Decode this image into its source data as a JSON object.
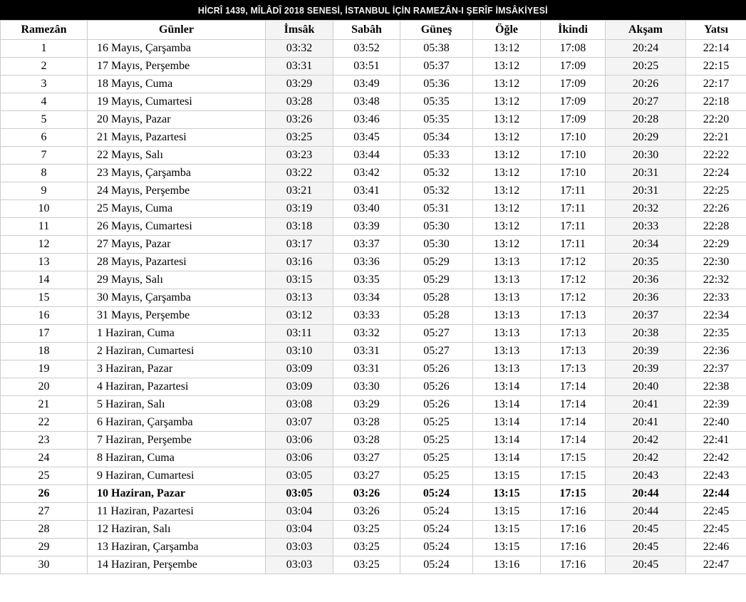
{
  "title": "HİCRÎ 1439, MÎLÂDÎ 2018 SENESİ, İSTANBUL İÇİN RAMEZÂN-I ŞERÎF İMSÂKİYESİ",
  "table": {
    "columns": [
      {
        "key": "ramezan",
        "label": "Ramezân"
      },
      {
        "key": "gunler",
        "label": "Günler"
      },
      {
        "key": "imsak",
        "label": "İmsâk"
      },
      {
        "key": "sabah",
        "label": "Sabâh"
      },
      {
        "key": "gunes",
        "label": "Güneş"
      },
      {
        "key": "ogle",
        "label": "Öğle"
      },
      {
        "key": "ikindi",
        "label": "İkindi"
      },
      {
        "key": "aksam",
        "label": "Akşam"
      },
      {
        "key": "yatsi",
        "label": "Yatsı"
      }
    ],
    "shaded_column_keys": [
      "imsak",
      "aksam"
    ],
    "highlighted_row_index": 25,
    "rows": [
      [
        "1",
        "16 Mayıs, Çarşamba",
        "03:32",
        "03:52",
        "05:38",
        "13:12",
        "17:08",
        "20:24",
        "22:14"
      ],
      [
        "2",
        "17 Mayıs, Perşembe",
        "03:31",
        "03:51",
        "05:37",
        "13:12",
        "17:09",
        "20:25",
        "22:15"
      ],
      [
        "3",
        "18 Mayıs, Cuma",
        "03:29",
        "03:49",
        "05:36",
        "13:12",
        "17:09",
        "20:26",
        "22:17"
      ],
      [
        "4",
        "19 Mayıs, Cumartesi",
        "03:28",
        "03:48",
        "05:35",
        "13:12",
        "17:09",
        "20:27",
        "22:18"
      ],
      [
        "5",
        "20 Mayıs, Pazar",
        "03:26",
        "03:46",
        "05:35",
        "13:12",
        "17:09",
        "20:28",
        "22:20"
      ],
      [
        "6",
        "21 Mayıs, Pazartesi",
        "03:25",
        "03:45",
        "05:34",
        "13:12",
        "17:10",
        "20:29",
        "22:21"
      ],
      [
        "7",
        "22 Mayıs, Salı",
        "03:23",
        "03:44",
        "05:33",
        "13:12",
        "17:10",
        "20:30",
        "22:22"
      ],
      [
        "8",
        "23 Mayıs, Çarşamba",
        "03:22",
        "03:42",
        "05:32",
        "13:12",
        "17:10",
        "20:31",
        "22:24"
      ],
      [
        "9",
        "24 Mayıs, Perşembe",
        "03:21",
        "03:41",
        "05:32",
        "13:12",
        "17:11",
        "20:31",
        "22:25"
      ],
      [
        "10",
        "25 Mayıs, Cuma",
        "03:19",
        "03:40",
        "05:31",
        "13:12",
        "17:11",
        "20:32",
        "22:26"
      ],
      [
        "11",
        "26 Mayıs, Cumartesi",
        "03:18",
        "03:39",
        "05:30",
        "13:12",
        "17:11",
        "20:33",
        "22:28"
      ],
      [
        "12",
        "27 Mayıs, Pazar",
        "03:17",
        "03:37",
        "05:30",
        "13:12",
        "17:11",
        "20:34",
        "22:29"
      ],
      [
        "13",
        "28 Mayıs, Pazartesi",
        "03:16",
        "03:36",
        "05:29",
        "13:13",
        "17:12",
        "20:35",
        "22:30"
      ],
      [
        "14",
        "29 Mayıs, Salı",
        "03:15",
        "03:35",
        "05:29",
        "13:13",
        "17:12",
        "20:36",
        "22:32"
      ],
      [
        "15",
        "30 Mayıs, Çarşamba",
        "03:13",
        "03:34",
        "05:28",
        "13:13",
        "17:12",
        "20:36",
        "22:33"
      ],
      [
        "16",
        "31 Mayıs, Perşembe",
        "03:12",
        "03:33",
        "05:28",
        "13:13",
        "17:13",
        "20:37",
        "22:34"
      ],
      [
        "17",
        "1 Haziran, Cuma",
        "03:11",
        "03:32",
        "05:27",
        "13:13",
        "17:13",
        "20:38",
        "22:35"
      ],
      [
        "18",
        "2 Haziran, Cumartesi",
        "03:10",
        "03:31",
        "05:27",
        "13:13",
        "17:13",
        "20:39",
        "22:36"
      ],
      [
        "19",
        "3 Haziran, Pazar",
        "03:09",
        "03:31",
        "05:26",
        "13:13",
        "17:13",
        "20:39",
        "22:37"
      ],
      [
        "20",
        "4 Haziran, Pazartesi",
        "03:09",
        "03:30",
        "05:26",
        "13:14",
        "17:14",
        "20:40",
        "22:38"
      ],
      [
        "21",
        "5 Haziran, Salı",
        "03:08",
        "03:29",
        "05:26",
        "13:14",
        "17:14",
        "20:41",
        "22:39"
      ],
      [
        "22",
        "6 Haziran, Çarşamba",
        "03:07",
        "03:28",
        "05:25",
        "13:14",
        "17:14",
        "20:41",
        "22:40"
      ],
      [
        "23",
        "7 Haziran, Perşembe",
        "03:06",
        "03:28",
        "05:25",
        "13:14",
        "17:14",
        "20:42",
        "22:41"
      ],
      [
        "24",
        "8 Haziran, Cuma",
        "03:06",
        "03:27",
        "05:25",
        "13:14",
        "17:15",
        "20:42",
        "22:42"
      ],
      [
        "25",
        "9 Haziran, Cumartesi",
        "03:05",
        "03:27",
        "05:25",
        "13:15",
        "17:15",
        "20:43",
        "22:43"
      ],
      [
        "26",
        "10 Haziran, Pazar",
        "03:05",
        "03:26",
        "05:24",
        "13:15",
        "17:15",
        "20:44",
        "22:44"
      ],
      [
        "27",
        "11 Haziran, Pazartesi",
        "03:04",
        "03:26",
        "05:24",
        "13:15",
        "17:16",
        "20:44",
        "22:45"
      ],
      [
        "28",
        "12 Haziran, Salı",
        "03:04",
        "03:25",
        "05:24",
        "13:15",
        "17:16",
        "20:45",
        "22:45"
      ],
      [
        "29",
        "13 Haziran, Çarşamba",
        "03:03",
        "03:25",
        "05:24",
        "13:15",
        "17:16",
        "20:45",
        "22:46"
      ],
      [
        "30",
        "14 Haziran, Perşembe",
        "03:03",
        "03:25",
        "05:24",
        "13:16",
        "17:16",
        "20:45",
        "22:47"
      ]
    ]
  },
  "colors": {
    "titlebar_bg": "#000000",
    "titlebar_text": "#f5f5f5",
    "shaded_column_bg": "#f4f4f4",
    "grid_border": "#cccccc",
    "text": "#000000",
    "row_bg": "#ffffff"
  }
}
